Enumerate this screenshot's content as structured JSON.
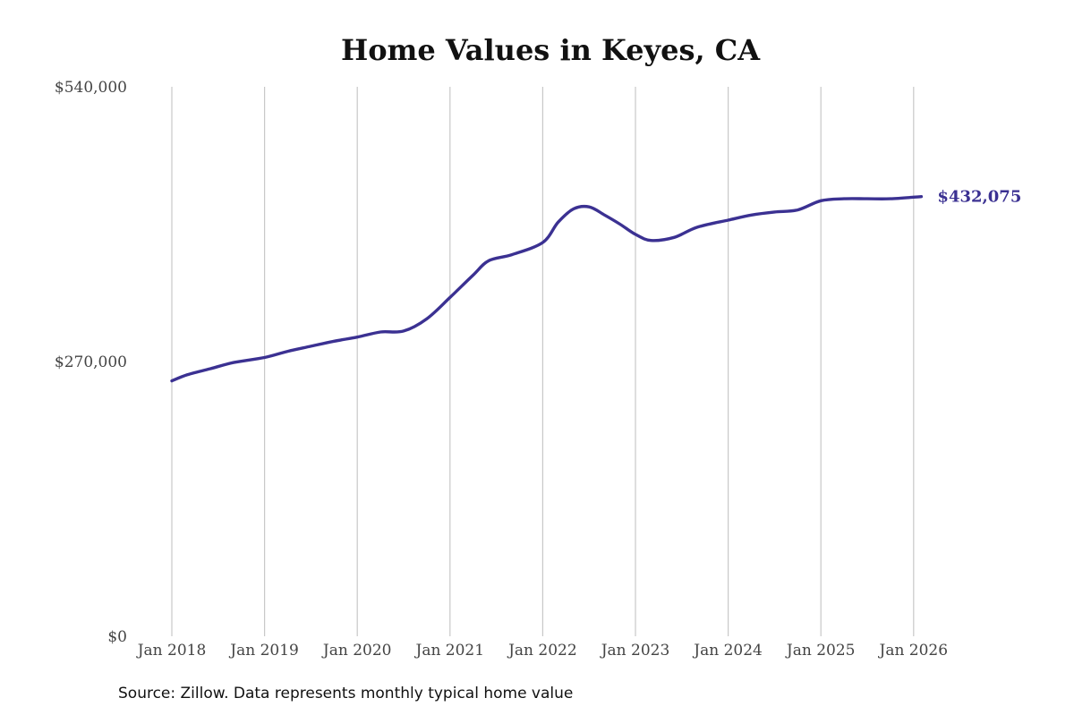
{
  "chart_data": {
    "type": "line",
    "title": "Home Values in Keyes, CA",
    "xlabel": "",
    "ylabel": "",
    "x_ticks": [
      "Jan 2018",
      "Jan 2019",
      "Jan 2020",
      "Jan 2021",
      "Jan 2022",
      "Jan 2023",
      "Jan 2024",
      "Jan 2025",
      "Jan 2026"
    ],
    "y_ticks": [
      "$0",
      "$270,000",
      "$540,000"
    ],
    "ylim": [
      0,
      540000
    ],
    "grid": "vertical",
    "series": [
      {
        "color": "#3b3192",
        "end_label": "$432,075",
        "points": [
          {
            "x": "2018-01",
            "y": 251000
          },
          {
            "x": "2018-03",
            "y": 257000
          },
          {
            "x": "2018-06",
            "y": 263000
          },
          {
            "x": "2018-09",
            "y": 269000
          },
          {
            "x": "2019-01",
            "y": 274000
          },
          {
            "x": "2019-04",
            "y": 280000
          },
          {
            "x": "2019-07",
            "y": 285000
          },
          {
            "x": "2019-10",
            "y": 290000
          },
          {
            "x": "2020-01",
            "y": 294000
          },
          {
            "x": "2020-04",
            "y": 299000
          },
          {
            "x": "2020-07",
            "y": 300000
          },
          {
            "x": "2020-10",
            "y": 312000
          },
          {
            "x": "2021-01",
            "y": 333000
          },
          {
            "x": "2021-04",
            "y": 355000
          },
          {
            "x": "2021-06",
            "y": 369000
          },
          {
            "x": "2021-09",
            "y": 375000
          },
          {
            "x": "2022-01",
            "y": 387000
          },
          {
            "x": "2022-03",
            "y": 407000
          },
          {
            "x": "2022-05",
            "y": 420000
          },
          {
            "x": "2022-07",
            "y": 422000
          },
          {
            "x": "2022-09",
            "y": 414000
          },
          {
            "x": "2022-11",
            "y": 405000
          },
          {
            "x": "2023-01",
            "y": 395000
          },
          {
            "x": "2023-03",
            "y": 389000
          },
          {
            "x": "2023-06",
            "y": 392000
          },
          {
            "x": "2023-09",
            "y": 402000
          },
          {
            "x": "2024-01",
            "y": 409000
          },
          {
            "x": "2024-04",
            "y": 414000
          },
          {
            "x": "2024-07",
            "y": 417000
          },
          {
            "x": "2024-10",
            "y": 419000
          },
          {
            "x": "2025-01",
            "y": 428000
          },
          {
            "x": "2025-04",
            "y": 430000
          },
          {
            "x": "2025-07",
            "y": 430000
          },
          {
            "x": "2025-10",
            "y": 430000
          },
          {
            "x": "2026-02",
            "y": 432075
          }
        ]
      }
    ],
    "source": "Source: Zillow. Data represents monthly typical home value"
  }
}
